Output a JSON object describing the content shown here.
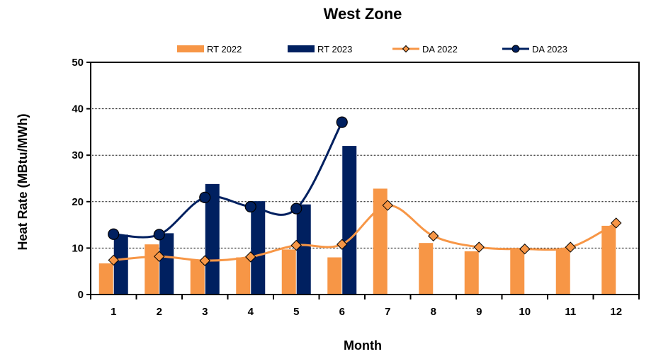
{
  "chart_data": {
    "type": "bar",
    "title": "West  Zone",
    "xlabel": "Month",
    "ylabel": "Heat Rate (MBtu/MWh)",
    "categories": [
      "1",
      "2",
      "3",
      "4",
      "5",
      "6",
      "7",
      "8",
      "9",
      "10",
      "11",
      "12"
    ],
    "ylim": [
      0,
      50
    ],
    "yticks": [
      "0",
      "10",
      "20",
      "30",
      "40",
      "50"
    ],
    "grid": true,
    "legend_position": "top",
    "bar_series": [
      {
        "name": "RT 2022",
        "color": "#F79646",
        "values": [
          6.7,
          10.8,
          7.4,
          8.0,
          9.7,
          8.0,
          22.8,
          11.1,
          9.3,
          10.0,
          9.9,
          14.8
        ]
      },
      {
        "name": "RT 2023",
        "color": "#002060",
        "values": [
          12.9,
          13.2,
          23.8,
          20.1,
          19.4,
          32.0,
          null,
          null,
          null,
          null,
          null,
          null
        ]
      }
    ],
    "line_series": [
      {
        "name": "DA 2022",
        "color": "#F79646",
        "marker": "diamond",
        "values": [
          7.4,
          8.2,
          7.3,
          8.1,
          10.6,
          10.8,
          19.2,
          12.6,
          10.2,
          9.8,
          10.2,
          15.4
        ]
      },
      {
        "name": "DA 2023",
        "color": "#002060",
        "marker": "circle",
        "values": [
          13.0,
          12.9,
          20.9,
          18.9,
          18.5,
          37.1,
          null,
          null,
          null,
          null,
          null,
          null
        ]
      }
    ]
  }
}
